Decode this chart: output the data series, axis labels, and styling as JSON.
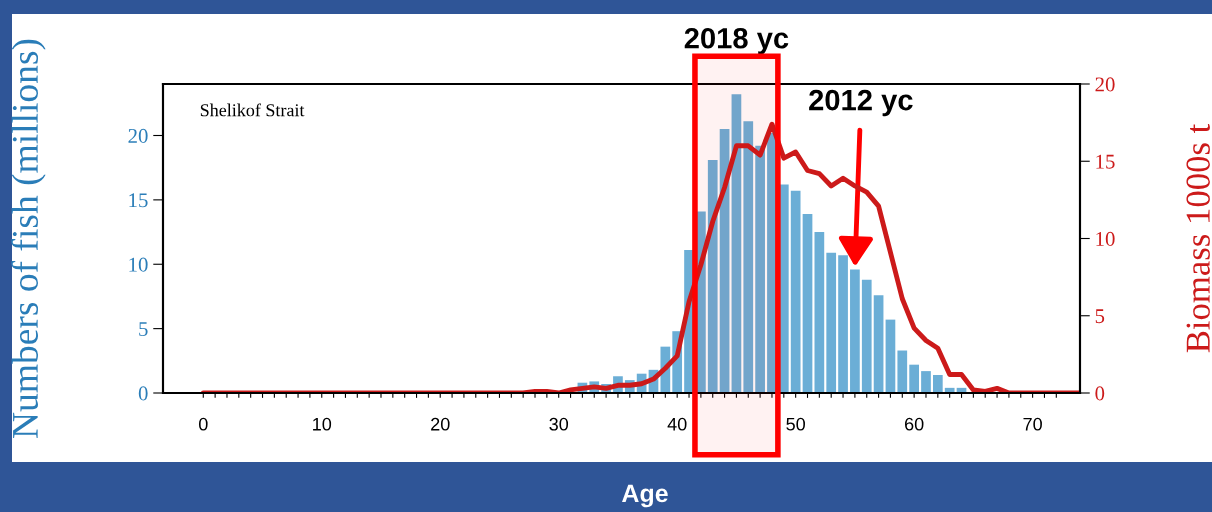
{
  "chart_data": {
    "type": "bar",
    "xlabel": "Age",
    "ylabel": "Numbers of fish (millions)",
    "y2label": "Biomass 1000s t",
    "series": [
      {
        "color": "#6baed6",
        "x": [
          32,
          33,
          34,
          35,
          36,
          37,
          38,
          39,
          40,
          41,
          42,
          43,
          44,
          45,
          46,
          47,
          48,
          49,
          50,
          51,
          52,
          53,
          54,
          55,
          56,
          57,
          58,
          59,
          60,
          61,
          62,
          63,
          64
        ],
        "values": [
          0.8,
          0.9,
          0.7,
          1.3,
          1.0,
          1.5,
          1.8,
          3.6,
          4.8,
          11.1,
          14.1,
          18.1,
          20.5,
          23.2,
          21.1,
          19.2,
          20.2,
          16.2,
          15.7,
          13.9,
          12.5,
          10.9,
          10.7,
          9.6,
          8.8,
          7.6,
          5.7,
          3.3,
          2.2,
          1.7,
          1.4,
          0.4,
          0.4
        ]
      },
      {
        "type": "line",
        "axis": "y2",
        "color": "#cc1a1a",
        "x": [
          0,
          5,
          10,
          15,
          20,
          25,
          27,
          28,
          29,
          30,
          31,
          32,
          33,
          34,
          35,
          36,
          37,
          38,
          39,
          40,
          41,
          42,
          43,
          44,
          45,
          46,
          47,
          48,
          49,
          50,
          51,
          52,
          53,
          54,
          55,
          56,
          57,
          58,
          59,
          60,
          61,
          62,
          63,
          64,
          65,
          66,
          67,
          68,
          70,
          74
        ],
        "values": [
          0,
          0,
          0,
          0,
          0,
          0,
          0,
          0.1,
          0.1,
          0,
          0.2,
          0.3,
          0.4,
          0.3,
          0.5,
          0.5,
          0.6,
          0.9,
          1.6,
          2.4,
          5.9,
          8.3,
          11.1,
          13.3,
          16.0,
          16.0,
          15.4,
          17.4,
          15.2,
          15.6,
          14.4,
          14.2,
          13.4,
          13.9,
          13.4,
          13.0,
          12.1,
          9.1,
          6.1,
          4.2,
          3.4,
          2.9,
          1.2,
          1.2,
          0.2,
          0.1,
          0.3,
          0,
          0,
          0
        ]
      }
    ],
    "xlim": [
      -3.4,
      74
    ],
    "xticks": [
      0,
      {
        "value": 1,
        "label": null
      },
      {
        "value": 2,
        "label": null
      },
      {
        "value": 3,
        "label": null
      },
      {
        "value": 4,
        "label": null
      },
      {
        "value": 5,
        "label": null
      },
      {
        "value": 6,
        "label": null
      },
      {
        "value": 7,
        "label": null
      },
      {
        "value": 8,
        "label": null
      },
      {
        "value": 9,
        "label": null
      },
      10,
      {
        "value": 11,
        "label": null
      },
      {
        "value": 12,
        "label": null
      },
      {
        "value": 13,
        "label": null
      },
      {
        "value": 14,
        "label": null
      },
      {
        "value": 15,
        "label": null
      },
      {
        "value": 16,
        "label": null
      },
      {
        "value": 17,
        "label": null
      },
      {
        "value": 18,
        "label": null
      },
      {
        "value": 19,
        "label": null
      },
      20,
      {
        "value": 21,
        "label": null
      },
      {
        "value": 22,
        "label": null
      },
      {
        "value": 23,
        "label": null
      },
      {
        "value": 24,
        "label": null
      },
      {
        "value": 25,
        "label": null
      },
      {
        "value": 26,
        "label": null
      },
      {
        "value": 27,
        "label": null
      },
      {
        "value": 28,
        "label": null
      },
      {
        "value": 29,
        "label": null
      },
      30,
      {
        "value": 31,
        "label": null
      },
      {
        "value": 32,
        "label": null
      },
      {
        "value": 33,
        "label": null
      },
      {
        "value": 34,
        "label": null
      },
      {
        "value": 35,
        "label": null
      },
      {
        "value": 36,
        "label": null
      },
      {
        "value": 37,
        "label": null
      },
      {
        "value": 38,
        "label": null
      },
      {
        "value": 39,
        "label": null
      },
      40,
      {
        "value": 41,
        "label": null
      },
      {
        "value": 42,
        "label": null
      },
      {
        "value": 43,
        "label": null
      },
      {
        "value": 44,
        "label": null
      },
      {
        "value": 45,
        "label": null
      },
      {
        "value": 46,
        "label": null
      },
      {
        "value": 47,
        "label": null
      },
      {
        "value": 48,
        "label": null
      },
      {
        "value": 49,
        "label": null
      },
      50,
      {
        "value": 51,
        "label": null
      },
      {
        "value": 52,
        "label": null
      },
      {
        "value": 53,
        "label": null
      },
      {
        "value": 54,
        "label": null
      },
      {
        "value": 55,
        "label": null
      },
      {
        "value": 56,
        "label": null
      },
      {
        "value": 57,
        "label": null
      },
      {
        "value": 58,
        "label": null
      },
      {
        "value": 59,
        "label": null
      },
      60,
      {
        "value": 61,
        "label": null
      },
      {
        "value": 62,
        "label": null
      },
      {
        "value": 63,
        "label": null
      },
      {
        "value": 64,
        "label": null
      },
      {
        "value": 65,
        "label": null
      },
      {
        "value": 66,
        "label": null
      },
      {
        "value": 67,
        "label": null
      },
      {
        "value": 68,
        "label": null
      },
      {
        "value": 69,
        "label": null
      },
      70,
      {
        "value": 71,
        "label": null
      },
      {
        "value": 72,
        "label": null
      }
    ],
    "ylim": [
      0,
      24
    ],
    "yticks": [
      0,
      5,
      10,
      15,
      20
    ],
    "y2lim": [
      0,
      20
    ],
    "y2ticks": [
      0,
      5,
      10,
      15,
      20
    ],
    "bands": [
      {
        "axis": "x",
        "from": 41.5,
        "to": 48.5,
        "label": "2018 yc",
        "color": "#ff0000"
      }
    ],
    "annotations": [
      "Shelikof Strait",
      {
        "text": "2012 yc",
        "x": 55,
        "y": 9.6
      }
    ],
    "grid": false
  }
}
